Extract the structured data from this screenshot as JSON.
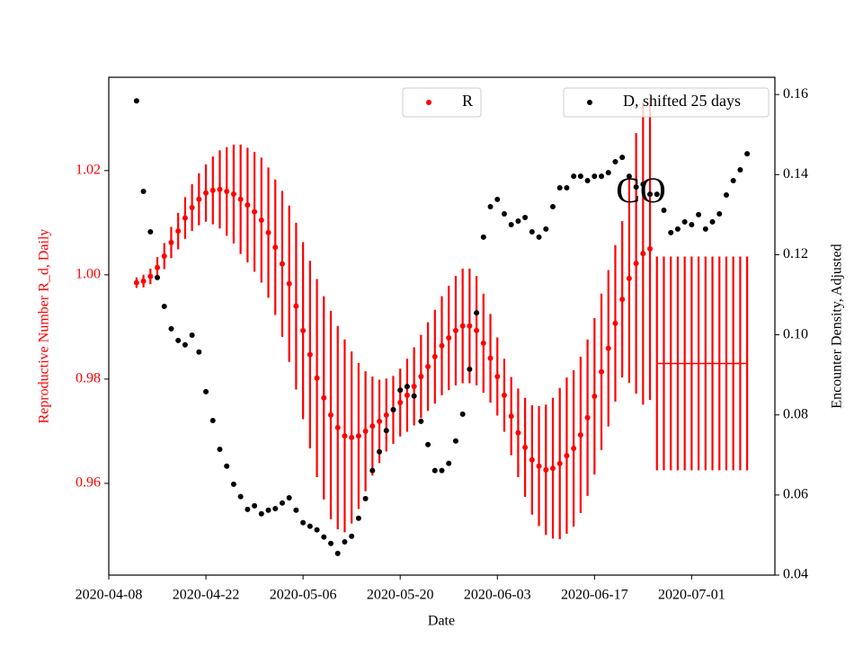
{
  "chart_data": {
    "type": "errorbar_scatter",
    "xlabel": "Date",
    "ylabel": "Reproductive Number R_d, Daily",
    "y2label": "Encounter Density, Adjusted",
    "annotation": "CO",
    "xlim": [
      "2020-04-08",
      "2020-07-13"
    ],
    "xticks": [
      "2020-04-08",
      "2020-04-22",
      "2020-05-06",
      "2020-05-20",
      "2020-06-03",
      "2020-06-17",
      "2020-07-01"
    ],
    "ylim": [
      0.9424,
      1.0379
    ],
    "yticks": [
      0.96,
      0.98,
      {
        "value": 1,
        "label": "1.00"
      },
      1.02
    ],
    "y2lim": [
      0.04,
      0.1643
    ],
    "y2ticks": [
      0.04,
      0.06,
      0.08,
      {
        "value": 0.1,
        "label": "0.10"
      },
      0.12,
      0.14,
      0.16
    ],
    "x": [
      "2020-04-12",
      "2020-04-13",
      "2020-04-14",
      "2020-04-15",
      "2020-04-16",
      "2020-04-17",
      "2020-04-18",
      "2020-04-19",
      "2020-04-20",
      "2020-04-21",
      "2020-04-22",
      "2020-04-23",
      "2020-04-24",
      "2020-04-25",
      "2020-04-26",
      "2020-04-27",
      "2020-04-28",
      "2020-04-29",
      "2020-04-30",
      "2020-05-01",
      "2020-05-02",
      "2020-05-03",
      "2020-05-04",
      "2020-05-05",
      "2020-05-06",
      "2020-05-07",
      "2020-05-08",
      "2020-05-09",
      "2020-05-10",
      "2020-05-11",
      "2020-05-12",
      "2020-05-13",
      "2020-05-14",
      "2020-05-15",
      "2020-05-16",
      "2020-05-17",
      "2020-05-18",
      "2020-05-19",
      "2020-05-20",
      "2020-05-21",
      "2020-05-22",
      "2020-05-23",
      "2020-05-24",
      "2020-05-25",
      "2020-05-26",
      "2020-05-27",
      "2020-05-28",
      "2020-05-29",
      "2020-05-30",
      "2020-05-31",
      "2020-06-01",
      "2020-06-02",
      "2020-06-03",
      "2020-06-04",
      "2020-06-05",
      "2020-06-06",
      "2020-06-07",
      "2020-06-08",
      "2020-06-09",
      "2020-06-10",
      "2020-06-11",
      "2020-06-12",
      "2020-06-13",
      "2020-06-14",
      "2020-06-15",
      "2020-06-16",
      "2020-06-17",
      "2020-06-18",
      "2020-06-19",
      "2020-06-20",
      "2020-06-21",
      "2020-06-22",
      "2020-06-23",
      "2020-06-24",
      "2020-06-25",
      "2020-06-26",
      "2020-06-27",
      "2020-06-28",
      "2020-06-29",
      "2020-06-30",
      "2020-07-01",
      "2020-07-02",
      "2020-07-03",
      "2020-07-04",
      "2020-07-05",
      "2020-07-06",
      "2020-07-07",
      "2020-07-08",
      "2020-07-09"
    ],
    "series": [
      {
        "name": "R",
        "color": "#ff0000",
        "axis": "y",
        "legend": "upper center",
        "values": [
          0.9985,
          0.9988,
          0.9997,
          1.0014,
          1.0036,
          1.0062,
          1.0084,
          1.0109,
          1.0129,
          1.0145,
          1.0157,
          1.0162,
          1.0164,
          1.016,
          1.0155,
          1.0145,
          1.0134,
          1.0121,
          1.0105,
          1.0081,
          1.0053,
          1.0021,
          0.9983,
          0.994,
          0.9893,
          0.9847,
          0.9802,
          0.9764,
          0.9731,
          0.9707,
          0.9691,
          0.9688,
          0.9691,
          0.97,
          0.971,
          0.9719,
          0.9731,
          0.9741,
          0.9755,
          0.9769,
          0.9786,
          0.9805,
          0.9824,
          0.9843,
          0.9864,
          0.9879,
          0.9893,
          0.9902,
          0.9902,
          0.9893,
          0.9869,
          0.984,
          0.9805,
          0.9769,
          0.9729,
          0.9697,
          0.9669,
          0.9645,
          0.9633,
          0.9626,
          0.9629,
          0.9638,
          0.9653,
          0.9667,
          0.9693,
          0.9726,
          0.9767,
          0.9814,
          0.9859,
          0.9907,
          0.9953,
          0.9993,
          1.0022,
          1.0041,
          1.005,
          null,
          null,
          null,
          null,
          null,
          null,
          null,
          null,
          null,
          null,
          null,
          null,
          null,
          null
        ],
        "errors": [
          0.001,
          0.0012,
          0.0015,
          0.002,
          0.0025,
          0.003,
          0.0035,
          0.004,
          0.0045,
          0.005,
          0.0055,
          0.0065,
          0.0075,
          0.0085,
          0.0095,
          0.0105,
          0.011,
          0.0115,
          0.012,
          0.0125,
          0.013,
          0.014,
          0.015,
          0.016,
          0.017,
          0.018,
          0.019,
          0.0195,
          0.02,
          0.0195,
          0.0185,
          0.0165,
          0.014,
          0.0115,
          0.0095,
          0.008,
          0.007,
          0.0065,
          0.0065,
          0.007,
          0.0075,
          0.008,
          0.0085,
          0.009,
          0.0095,
          0.01,
          0.0105,
          0.011,
          0.011,
          0.0105,
          0.0095,
          0.0085,
          0.0075,
          0.007,
          0.0075,
          0.0085,
          0.0095,
          0.0105,
          0.0115,
          0.0125,
          0.0135,
          0.0145,
          0.015,
          0.015,
          0.015,
          0.015,
          0.015,
          0.015,
          0.015,
          0.015,
          0.015,
          0.02,
          0.025,
          0.029,
          0.029,
          null,
          null,
          null,
          null,
          null,
          null,
          null,
          null,
          null,
          null,
          null,
          null,
          null,
          null
        ]
      },
      {
        "name": "D, shifted 25 days",
        "color": "#000000",
        "axis": "y2",
        "legend": "upper right",
        "values": [
          0.1584,
          0.1358,
          0.1257,
          0.1143,
          0.1071,
          0.1015,
          0.0986,
          0.0975,
          0.0999,
          0.0957,
          0.0858,
          0.0786,
          0.0714,
          0.0672,
          0.0627,
          0.0596,
          0.0564,
          0.0573,
          0.0553,
          0.0562,
          0.0566,
          0.058,
          0.0593,
          0.0562,
          0.0531,
          0.0522,
          0.0513,
          0.0495,
          0.0479,
          0.0454,
          0.0483,
          0.0497,
          0.0542,
          0.0591,
          0.0661,
          0.0708,
          0.0761,
          0.0813,
          0.0862,
          0.0871,
          0.0847,
          0.0784,
          0.0726,
          0.0661,
          0.0661,
          0.0679,
          0.0735,
          0.0802,
          0.0914,
          0.1055,
          0.1244,
          0.132,
          0.1338,
          0.1302,
          0.1275,
          0.1284,
          0.1293,
          0.1257,
          0.1244,
          0.1264,
          0.132,
          0.1367,
          0.1367,
          0.1396,
          0.1396,
          0.1385,
          0.1396,
          0.1396,
          0.1405,
          0.1432,
          0.1443,
          0.1396,
          0.1369,
          0.1376,
          0.1351,
          0.1351,
          0.1311,
          0.1255,
          0.1264,
          0.1282,
          0.1275,
          0.13,
          0.1264,
          0.1282,
          0.1302,
          0.1349,
          0.1385,
          0.1412,
          0.1452
        ]
      }
    ],
    "forecast": {
      "color": "#ff0000",
      "axis": "y",
      "values": [
        null,
        null,
        null,
        null,
        null,
        null,
        null,
        null,
        null,
        null,
        null,
        null,
        null,
        null,
        null,
        null,
        null,
        null,
        null,
        null,
        null,
        null,
        null,
        null,
        null,
        null,
        null,
        null,
        null,
        null,
        null,
        null,
        null,
        null,
        null,
        null,
        null,
        null,
        null,
        null,
        null,
        null,
        null,
        null,
        null,
        null,
        null,
        null,
        null,
        null,
        null,
        null,
        null,
        null,
        null,
        null,
        null,
        null,
        null,
        null,
        null,
        null,
        null,
        null,
        null,
        null,
        null,
        null,
        null,
        null,
        null,
        null,
        null,
        null,
        null,
        0.983,
        0.983,
        0.983,
        0.983,
        0.983,
        0.983,
        0.983,
        0.983,
        0.983,
        0.983,
        0.983,
        0.983,
        0.983,
        0.983
      ],
      "errors": [
        null,
        null,
        null,
        null,
        null,
        null,
        null,
        null,
        null,
        null,
        null,
        null,
        null,
        null,
        null,
        null,
        null,
        null,
        null,
        null,
        null,
        null,
        null,
        null,
        null,
        null,
        null,
        null,
        null,
        null,
        null,
        null,
        null,
        null,
        null,
        null,
        null,
        null,
        null,
        null,
        null,
        null,
        null,
        null,
        null,
        null,
        null,
        null,
        null,
        null,
        null,
        null,
        null,
        null,
        null,
        null,
        null,
        null,
        null,
        null,
        null,
        null,
        null,
        null,
        null,
        null,
        null,
        null,
        null,
        null,
        null,
        null,
        null,
        null,
        null,
        0.0205,
        0.0205,
        0.0205,
        0.0205,
        0.0205,
        0.0205,
        0.0205,
        0.0205,
        0.0205,
        0.0205,
        0.0205,
        0.0205,
        0.0205,
        0.0205
      ]
    }
  }
}
